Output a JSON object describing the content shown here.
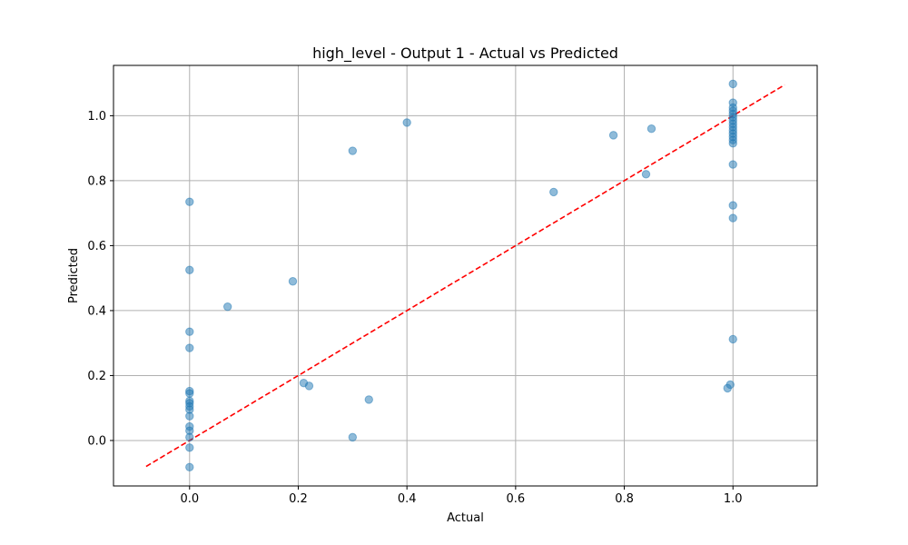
{
  "chart_data": {
    "type": "scatter",
    "title": "high_level - Output 1 - Actual vs Predicted",
    "xlabel": "Actual",
    "ylabel": "Predicted",
    "xlim": [
      -0.14,
      1.155
    ],
    "ylim": [
      -0.14,
      1.155
    ],
    "x_ticks": [
      0.0,
      0.2,
      0.4,
      0.6,
      0.8,
      1.0
    ],
    "y_ticks": [
      0.0,
      0.2,
      0.4,
      0.6,
      0.8,
      1.0
    ],
    "x_tick_labels": [
      "0.0",
      "0.2",
      "0.4",
      "0.6",
      "0.8",
      "1.0"
    ],
    "y_tick_labels": [
      "0.0",
      "0.2",
      "0.4",
      "0.6",
      "0.8",
      "1.0"
    ],
    "grid": true,
    "marker_color": "#1f77b4",
    "marker_opacity": 0.5,
    "reference_line": {
      "x": [
        -0.08,
        1.095
      ],
      "y": [
        -0.08,
        1.095
      ],
      "color": "#ff0000",
      "style": "dashed"
    },
    "points": [
      [
        0.0,
        0.735
      ],
      [
        0.0,
        0.525
      ],
      [
        0.0,
        0.335
      ],
      [
        0.0,
        0.285
      ],
      [
        0.0,
        0.152
      ],
      [
        0.0,
        0.145
      ],
      [
        0.0,
        0.122
      ],
      [
        0.0,
        0.115
      ],
      [
        0.0,
        0.105
      ],
      [
        0.0,
        0.095
      ],
      [
        0.0,
        0.075
      ],
      [
        0.0,
        0.043
      ],
      [
        0.0,
        0.03
      ],
      [
        0.0,
        0.01
      ],
      [
        0.0,
        -0.022
      ],
      [
        0.0,
        -0.082
      ],
      [
        0.07,
        0.412
      ],
      [
        0.19,
        0.49
      ],
      [
        0.21,
        0.177
      ],
      [
        0.22,
        0.168
      ],
      [
        0.3,
        0.892
      ],
      [
        0.3,
        0.01
      ],
      [
        0.33,
        0.126
      ],
      [
        0.4,
        0.979
      ],
      [
        0.67,
        0.765
      ],
      [
        0.78,
        0.94
      ],
      [
        0.84,
        0.82
      ],
      [
        0.85,
        0.96
      ],
      [
        1.0,
        1.098
      ],
      [
        1.0,
        1.04
      ],
      [
        1.0,
        1.025
      ],
      [
        1.0,
        1.015
      ],
      [
        1.0,
        1.005
      ],
      [
        1.0,
        0.995
      ],
      [
        1.0,
        0.985
      ],
      [
        1.0,
        0.975
      ],
      [
        1.0,
        0.965
      ],
      [
        1.0,
        0.955
      ],
      [
        1.0,
        0.945
      ],
      [
        1.0,
        0.935
      ],
      [
        1.0,
        0.925
      ],
      [
        1.0,
        0.915
      ],
      [
        1.0,
        0.85
      ],
      [
        1.0,
        0.724
      ],
      [
        1.0,
        0.685
      ],
      [
        1.0,
        0.312
      ],
      [
        0.995,
        0.172
      ],
      [
        0.99,
        0.161
      ]
    ]
  }
}
